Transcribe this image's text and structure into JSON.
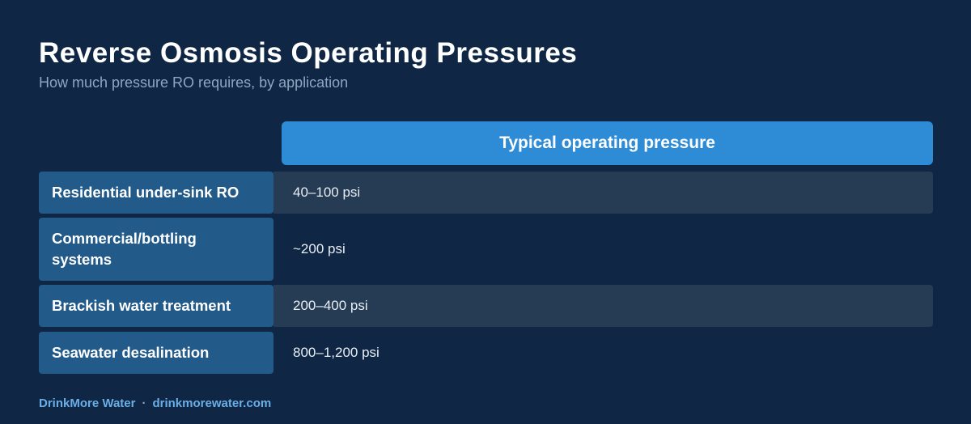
{
  "title": "Reverse Osmosis Operating Pressures",
  "subtitle": "How much pressure RO requires, by application",
  "table": {
    "column_header": "Typical operating pressure",
    "rows": [
      {
        "label": "Residential under-sink RO",
        "value": "40–100 psi"
      },
      {
        "label": "Commercial/bottling systems",
        "value": "~200 psi"
      },
      {
        "label": "Brackish water treatment",
        "value": "200–400 psi"
      },
      {
        "label": "Seawater desalination",
        "value": "800–1,200 psi"
      }
    ]
  },
  "footer": {
    "brand": "DrinkMore Water",
    "separator": "·",
    "url": "drinkmorewater.com"
  },
  "colors": {
    "background": "#0f2744",
    "header_fill": "#2e8bd6",
    "label_fill": "#225a8a",
    "shaded_row": "#263c55",
    "footer_text": "#6aaee8"
  }
}
